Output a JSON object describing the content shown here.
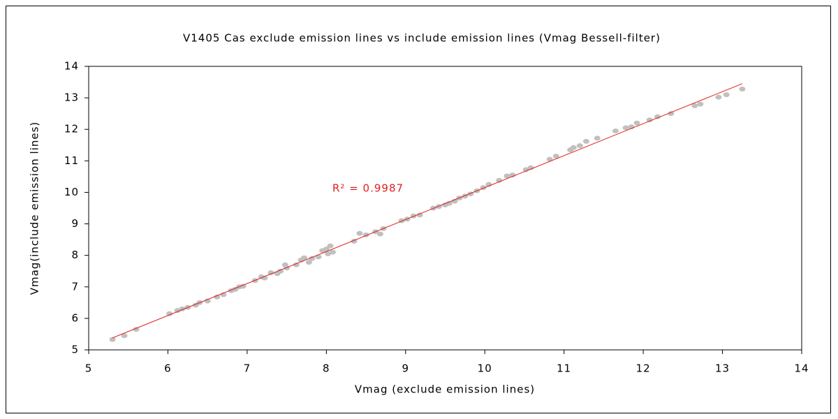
{
  "chart_data": {
    "type": "scatter",
    "title": "V1405 Cas   exclude emission lines  vs  include emission lines (Vmag Bessell-filter)",
    "x_label": "Vmag (exclude emission lines)",
    "y_label": "Vmag(include emission lines)",
    "annotation": "R² = 0.9987",
    "color": "#c0c0c0",
    "trendline": {
      "color": "#e02020",
      "x": [
        5.3,
        13.25
      ],
      "y": [
        5.38,
        13.45
      ]
    },
    "x": [
      5.3,
      5.45,
      5.6,
      6.02,
      6.12,
      6.18,
      6.25,
      6.35,
      6.4,
      6.5,
      6.62,
      6.7,
      6.8,
      6.85,
      6.9,
      6.95,
      7.1,
      7.18,
      7.22,
      7.3,
      7.38,
      7.42,
      7.48,
      7.5,
      7.62,
      7.68,
      7.72,
      7.78,
      7.82,
      7.9,
      7.95,
      8.0,
      8.05,
      8.08,
      8.02,
      8.35,
      8.42,
      8.5,
      8.62,
      8.68,
      8.72,
      8.95,
      9.02,
      9.1,
      9.18,
      9.35,
      9.42,
      9.5,
      9.55,
      9.62,
      9.68,
      9.75,
      9.82,
      9.9,
      9.98,
      10.05,
      10.18,
      10.28,
      10.35,
      10.52,
      10.58,
      10.82,
      10.9,
      11.08,
      11.12,
      11.2,
      11.28,
      11.42,
      11.65,
      11.78,
      11.85,
      11.92,
      12.08,
      12.18,
      12.35,
      12.65,
      12.72,
      12.95,
      13.05,
      13.25
    ],
    "values": [
      5.33,
      5.45,
      5.65,
      6.15,
      6.25,
      6.3,
      6.35,
      6.42,
      6.5,
      6.55,
      6.68,
      6.75,
      6.88,
      6.92,
      7.0,
      7.02,
      7.2,
      7.32,
      7.28,
      7.45,
      7.42,
      7.5,
      7.7,
      7.6,
      7.7,
      7.85,
      7.92,
      7.78,
      7.9,
      7.95,
      8.15,
      8.2,
      8.3,
      8.1,
      8.05,
      8.45,
      8.7,
      8.65,
      8.75,
      8.68,
      8.85,
      9.1,
      9.15,
      9.25,
      9.28,
      9.5,
      9.55,
      9.6,
      9.65,
      9.72,
      9.82,
      9.88,
      9.95,
      10.05,
      10.15,
      10.25,
      10.38,
      10.52,
      10.55,
      10.72,
      10.78,
      11.05,
      11.15,
      11.35,
      11.42,
      11.48,
      11.62,
      11.72,
      11.95,
      12.05,
      12.08,
      12.2,
      12.3,
      12.4,
      12.5,
      12.75,
      12.8,
      13.02,
      13.1,
      13.28
    ],
    "xlim": [
      5,
      14
    ],
    "xticks": [
      5,
      6,
      7,
      8,
      9,
      10,
      11,
      12,
      13,
      14
    ],
    "ylim": [
      5,
      14
    ],
    "yticks": [
      5,
      6,
      7,
      8,
      9,
      10,
      11,
      12,
      13,
      14
    ],
    "grid": false
  }
}
